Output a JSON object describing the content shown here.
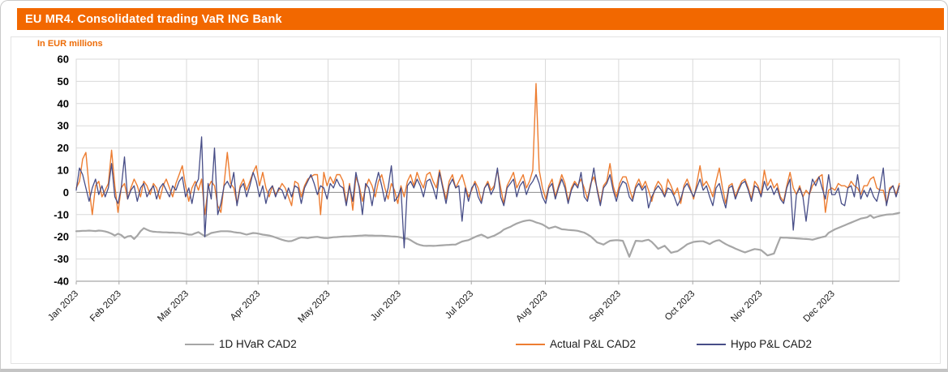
{
  "header": {
    "title": "EU MR4. Consolidated trading VaR ING Bank"
  },
  "colors": {
    "header_bg": "#F26800",
    "axis_note": "#ED6B06",
    "grid": "#D9D9D9",
    "zero_line": "#8C8C8C",
    "axis_line": "#A6A6A6",
    "hvar": "#A6A6A6",
    "actual": "#ED7D31",
    "hypo": "#474D87"
  },
  "chart_data": {
    "type": "line",
    "title": "EU MR4. Consolidated trading VaR ING Bank",
    "y_axis_note": "In EUR millions",
    "ylim": [
      -40,
      60
    ],
    "y_ticks": [
      60,
      50,
      40,
      30,
      20,
      10,
      0,
      -10,
      -20,
      -30,
      -40
    ],
    "grid": true,
    "legend_position": "bottom",
    "x_ticks": [
      {
        "label": "Jan 2023",
        "pos": 0.0
      },
      {
        "label": "Feb 2023",
        "pos": 0.052
      },
      {
        "label": "Mar 2023",
        "pos": 0.134
      },
      {
        "label": "Apr 2023",
        "pos": 0.221
      },
      {
        "label": "May 2023",
        "pos": 0.306
      },
      {
        "label": "Jun 2023",
        "pos": 0.392
      },
      {
        "label": "Jul 2023",
        "pos": 0.48
      },
      {
        "label": "Aug 2023",
        "pos": 0.57
      },
      {
        "label": "Sep 2023",
        "pos": 0.659
      },
      {
        "label": "Oct 2023",
        "pos": 0.749
      },
      {
        "label": "Nov 2023",
        "pos": 0.831
      },
      {
        "label": "Dec 2023",
        "pos": 0.919
      }
    ],
    "series": [
      {
        "name": "1D HVaR CAD2",
        "color": "#A6A6A6",
        "width": 2.2,
        "values": [
          -17.5,
          -17.4,
          -17.3,
          -17.3,
          -17.2,
          -17.3,
          -17.4,
          -17.2,
          -17.3,
          -17.6,
          -18,
          -18.6,
          -19.4,
          -18.6,
          -19.2,
          -20.5,
          -19.8,
          -19.6,
          -21,
          -19.5,
          -17.5,
          -16.1,
          -16.8,
          -17.4,
          -17.7,
          -17.8,
          -17.9,
          -18,
          -18,
          -18.1,
          -18.1,
          -18.2,
          -18.2,
          -18.4,
          -18.7,
          -19,
          -19,
          -18.4,
          -17.9,
          -18.8,
          -19.7,
          -19,
          -18.3,
          -18,
          -17.7,
          -17.5,
          -17.5,
          -17.5,
          -17.6,
          -17.9,
          -18.1,
          -18.2,
          -18.6,
          -19,
          -18.6,
          -18.3,
          -18.4,
          -18.7,
          -19,
          -19.2,
          -19.4,
          -19.8,
          -20.3,
          -20.8,
          -21.3,
          -21.7,
          -22,
          -21.9,
          -21.3,
          -20.7,
          -20.3,
          -20.4,
          -20.6,
          -20.3,
          -20.1,
          -20,
          -20.3,
          -20.5,
          -20.6,
          -20.4,
          -20.2,
          -20.1,
          -20,
          -19.9,
          -19.8,
          -19.8,
          -19.7,
          -19.6,
          -19.5,
          -19.4,
          -19.3,
          -19.4,
          -19.4,
          -19.5,
          -19.5,
          -19.5,
          -19.6,
          -19.7,
          -19.8,
          -19.9,
          -20,
          -20.3,
          -20.8,
          -20.8,
          -21.5,
          -22.4,
          -23.2,
          -23.7,
          -24,
          -24.1,
          -24,
          -24.1,
          -24,
          -23.9,
          -23.8,
          -23.7,
          -23.6,
          -23.5,
          -23.5,
          -22.8,
          -22.1,
          -21.8,
          -21.5,
          -20.8,
          -20.1,
          -19.5,
          -19,
          -19.7,
          -20.5,
          -20,
          -19.5,
          -18.7,
          -17.9,
          -16.7,
          -16.1,
          -15.5,
          -14.7,
          -14,
          -13.5,
          -13,
          -12.7,
          -12.5,
          -12.9,
          -13.5,
          -13.9,
          -14.4,
          -15.3,
          -16.2,
          -15.8,
          -15.4,
          -16,
          -16.6,
          -16.7,
          -16.9,
          -17,
          -17.1,
          -17.3,
          -17.7,
          -18.1,
          -18.9,
          -19.8,
          -21.1,
          -22.5,
          -23,
          -23.5,
          -22.6,
          -21.8,
          -21.6,
          -21.5,
          -21.6,
          -21.8,
          -25.3,
          -29,
          -25.4,
          -21.8,
          -21.9,
          -22,
          -21.6,
          -21.3,
          -22.3,
          -23.8,
          -25.4,
          -24.7,
          -24,
          -25.6,
          -27.2,
          -26.8,
          -26.5,
          -25.5,
          -24.5,
          -23.4,
          -22.8,
          -22.3,
          -22.1,
          -22,
          -22,
          -22.6,
          -23.3,
          -22.4,
          -21.8,
          -21.5,
          -22.4,
          -23.3,
          -24,
          -24.6,
          -25.3,
          -25.9,
          -26.5,
          -27,
          -26.5,
          -26,
          -25.5,
          -25.7,
          -26,
          -27.2,
          -28.4,
          -28,
          -27.5,
          -23.9,
          -20.3,
          -20.4,
          -20.4,
          -20.5,
          -20.6,
          -20.7,
          -20.8,
          -20.9,
          -21,
          -21.1,
          -21.3,
          -20.9,
          -20.5,
          -20.1,
          -19.8,
          -18.2,
          -17.4,
          -16.6,
          -16,
          -15.4,
          -14.8,
          -14.2,
          -13.6,
          -13,
          -12.4,
          -11.8,
          -11.5,
          -11.2,
          -10.3,
          -11.5,
          -11,
          -10.6,
          -10.3,
          -10,
          -9.9,
          -9.8,
          -9.5,
          -9.2
        ]
      },
      {
        "name": "Actual P&L CAD2",
        "color": "#ED7D31",
        "width": 1.4,
        "values": [
          2,
          5,
          15,
          18,
          2,
          -10,
          3,
          5,
          -2,
          1,
          4,
          19,
          3,
          -9,
          2,
          4,
          -3,
          2,
          6,
          3,
          -2,
          5,
          3,
          -1,
          4,
          2,
          -3,
          3,
          6,
          2,
          -2,
          4,
          8,
          12,
          3,
          -4,
          2,
          5,
          1,
          6,
          -10,
          2,
          5,
          3,
          -6,
          -9,
          4,
          18,
          4,
          2,
          -5,
          3,
          6,
          1,
          5,
          9,
          12,
          3,
          9,
          2,
          -2,
          3,
          -1,
          1,
          4,
          2,
          -2,
          -6,
          5,
          4,
          -2,
          3,
          6,
          7,
          8,
          8,
          -10,
          9,
          3,
          7,
          4,
          8,
          8,
          5,
          -5,
          4,
          -8,
          7,
          3,
          -4,
          2,
          6,
          3,
          -2,
          5,
          8,
          2,
          -3,
          4,
          1,
          -5,
          3,
          -2,
          5,
          8,
          3,
          9,
          5,
          2,
          8,
          9,
          5,
          2,
          10,
          3,
          -3,
          5,
          8,
          2,
          5,
          8,
          3,
          -2,
          1,
          5,
          2,
          -4,
          2,
          5,
          1,
          3,
          10,
          2,
          -5,
          3,
          6,
          9,
          2,
          5,
          8,
          2,
          5,
          10,
          49,
          10,
          2,
          -3,
          3,
          6,
          -2,
          3,
          8,
          4,
          -4,
          2,
          5,
          3,
          6,
          2,
          -3,
          4,
          7,
          2,
          -5,
          3,
          5,
          13,
          3,
          -2,
          4,
          7,
          7,
          2,
          -3,
          3,
          6,
          2,
          5,
          1,
          -4,
          2,
          5,
          3,
          -2,
          6,
          3,
          -1,
          2,
          -5,
          3,
          6,
          2,
          -3,
          4,
          12,
          3,
          5,
          2,
          -2,
          5,
          11,
          2,
          -5,
          3,
          4,
          -2,
          2,
          5,
          6,
          2,
          -3,
          5,
          3,
          -1,
          10,
          3,
          6,
          2,
          4,
          -2,
          -4,
          3,
          9,
          2,
          -1,
          3,
          -2,
          1,
          -1,
          3,
          5,
          7,
          8,
          -9,
          1,
          2,
          1,
          4,
          3,
          3,
          2,
          5,
          3,
          2,
          -1,
          3,
          3,
          6,
          7,
          2,
          1,
          1,
          -5,
          2,
          3,
          -1,
          4
        ]
      },
      {
        "name": "Hypo P&L CAD2",
        "color": "#474D87",
        "width": 1.3,
        "values": [
          1,
          11,
          8,
          2,
          -4,
          2,
          6,
          -1,
          3,
          -2,
          2,
          13,
          -2,
          -5,
          2,
          16,
          -3,
          1,
          3,
          -4,
          2,
          4,
          -2,
          1,
          3,
          -3,
          2,
          4,
          1,
          -2,
          3,
          1,
          5,
          7,
          -2,
          2,
          -5,
          3,
          6,
          25,
          -20,
          4,
          -3,
          20,
          -10,
          -5,
          3,
          5,
          2,
          9,
          -6,
          2,
          4,
          -2,
          3,
          9,
          5,
          -2,
          3,
          -5,
          1,
          3,
          -2,
          2,
          1,
          -3,
          2,
          -2,
          3,
          2,
          -5,
          2,
          5,
          8,
          4,
          -1,
          3,
          2,
          -3,
          4,
          2,
          6,
          3,
          2,
          -6,
          3,
          -4,
          9,
          2,
          -10,
          4,
          2,
          -6,
          3,
          9,
          3,
          -4,
          2,
          12,
          -4,
          -2,
          2,
          -25,
          3,
          5,
          2,
          6,
          3,
          -2,
          5,
          6,
          2,
          -3,
          9,
          2,
          -5,
          3,
          6,
          2,
          3,
          -13,
          2,
          -4,
          2,
          4,
          -2,
          -5,
          2,
          4,
          -1,
          2,
          11,
          -2,
          -6,
          2,
          4,
          6,
          -2,
          3,
          5,
          -1,
          3,
          5,
          8,
          4,
          -2,
          -5,
          2,
          4,
          -3,
          2,
          6,
          2,
          -5,
          1,
          4,
          2,
          9,
          -2,
          -4,
          3,
          11,
          1,
          -6,
          2,
          4,
          8,
          1,
          -4,
          2,
          5,
          4,
          -2,
          -4,
          2,
          4,
          1,
          3,
          -7,
          -2,
          1,
          3,
          1,
          -2,
          2,
          1,
          -2,
          -6,
          -3,
          2,
          4,
          1,
          -2,
          2,
          6,
          1,
          3,
          -2,
          -6,
          2,
          4,
          -2,
          -7,
          2,
          3,
          -3,
          1,
          4,
          5,
          1,
          -4,
          3,
          2,
          -2,
          5,
          1,
          3,
          -1,
          2,
          -3,
          -5,
          2,
          6,
          -17,
          -1,
          2,
          -2,
          -13,
          -1,
          6,
          3,
          7,
          2,
          -3,
          8,
          -1,
          -1,
          2,
          -5,
          -6,
          2,
          3,
          -2,
          8,
          -3,
          1,
          -2,
          2,
          -2,
          -4,
          2,
          11,
          -6,
          1,
          3,
          -2,
          3
        ]
      }
    ]
  }
}
